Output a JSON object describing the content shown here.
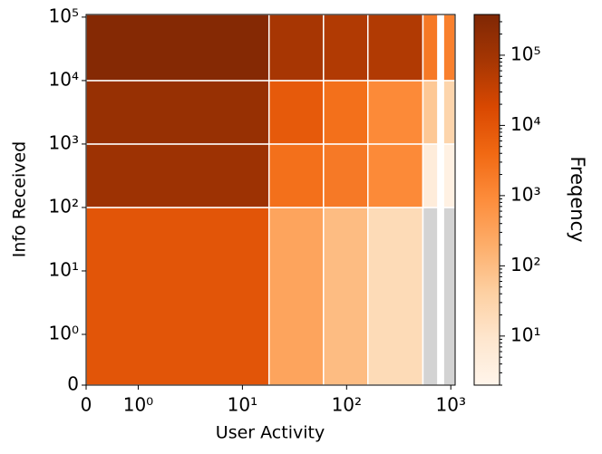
{
  "chart_data": {
    "type": "histogram2d",
    "xlabel": "User Activity",
    "ylabel": "Info Received",
    "colorbar_label": "Freqency",
    "x_edges": [
      0,
      18,
      60,
      160,
      540,
      750,
      850,
      1100
    ],
    "y_edges": [
      0,
      100,
      1000,
      10000,
      110000
    ],
    "values": [
      [
        10000,
        300,
        100,
        20,
        0,
        null,
        0
      ],
      [
        120000,
        3000,
        2000,
        1000,
        5,
        null,
        3
      ],
      [
        150000,
        8000,
        3000,
        1000,
        60,
        null,
        30
      ],
      [
        300000,
        80000,
        60000,
        60000,
        2000,
        null,
        1500
      ]
    ],
    "xscale": "symlog",
    "yscale": "symlog",
    "xlim": [
      0,
      1100
    ],
    "ylim": [
      0,
      110000
    ],
    "xticks": [
      0,
      {
        "value": 1,
        "label": "10⁰"
      },
      {
        "value": 10,
        "label": "10¹"
      },
      {
        "value": 100,
        "label": "10²"
      },
      {
        "value": 1000,
        "label": "10³"
      }
    ],
    "yticks": [
      0,
      {
        "value": 1,
        "label": "10⁰"
      },
      {
        "value": 10,
        "label": "10¹"
      },
      {
        "value": 100,
        "label": "10²"
      },
      {
        "value": 1000,
        "label": "10³"
      },
      {
        "value": 10000,
        "label": "10⁴"
      },
      {
        "value": 100000,
        "label": "10⁵"
      }
    ],
    "clim": [
      2,
      380000
    ],
    "cscale": "log",
    "cticks": [
      {
        "value": 10,
        "label": "10¹"
      },
      {
        "value": 100,
        "label": "10²"
      },
      {
        "value": 1000,
        "label": "10³"
      },
      {
        "value": 10000,
        "label": "10⁴"
      },
      {
        "value": 100000,
        "label": "10⁵"
      }
    ],
    "colormap": [
      "#fff5eb",
      "#fee6ce",
      "#fdd0a2",
      "#fdae6b",
      "#fd8d3c",
      "#f16913",
      "#d94801",
      "#a63603",
      "#7f2704"
    ],
    "empty_color": "#d3d3d3",
    "edge_color": "#ffffff"
  }
}
